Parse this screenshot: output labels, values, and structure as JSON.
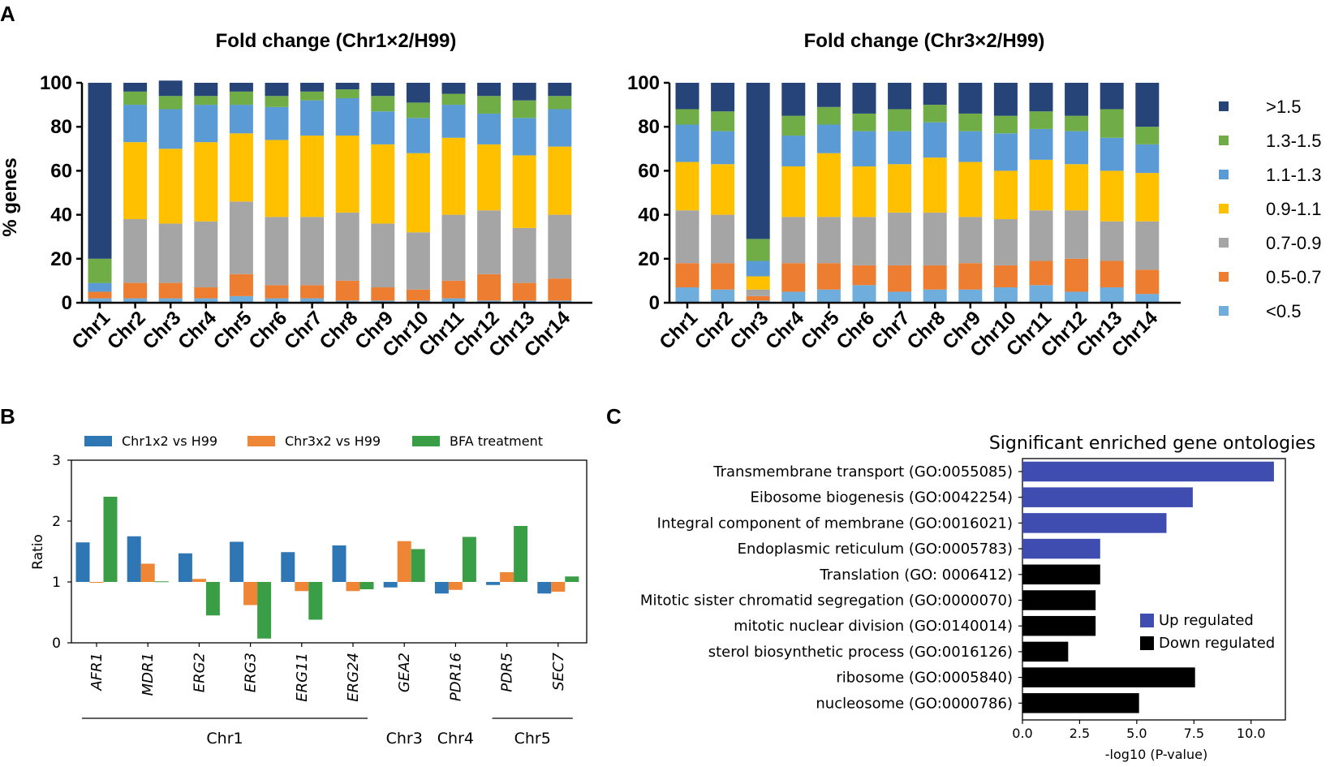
{
  "panel_labels": {
    "a": "A",
    "b": "B",
    "c": "C"
  },
  "colors": {
    "gt15": "#264478",
    "c13_15": "#70AD47",
    "c11_13": "#5B9BD5",
    "c09_11": "#FFC000",
    "c07_09": "#A5A5A5",
    "c05_07": "#ED7D31",
    "lt05": "#6FAEDC",
    "chr1x2": "#2F77B4",
    "chr3x2": "#EE8636",
    "bfa": "#3A9E46",
    "up": "#3F4DB0",
    "down": "#000000"
  },
  "chart_data": [
    {
      "id": "A1",
      "type": "bar",
      "stacked": true,
      "title": "Fold change (Chr1×2/H99)",
      "ylabel": "% genes",
      "ylim": [
        0,
        100
      ],
      "yticks": [
        "0",
        "20",
        "40",
        "60",
        "80",
        "100"
      ],
      "categories": [
        "Chr1",
        "Chr2",
        "Chr3",
        "Chr4",
        "Chr5",
        "Chr6",
        "Chr7",
        "Chr8",
        "Chr9",
        "Chr10",
        "Chr11",
        "Chr12",
        "Chr13",
        "Chr14"
      ],
      "series": [
        {
          "name": "<0.5",
          "color_key": "lt05",
          "values": [
            2,
            2,
            2,
            2,
            3,
            2,
            2,
            1,
            1,
            1,
            2,
            1,
            1,
            1
          ]
        },
        {
          "name": "0.5-0.7",
          "color_key": "c05_07",
          "values": [
            3,
            7,
            7,
            5,
            10,
            6,
            6,
            9,
            6,
            5,
            8,
            12,
            8,
            10
          ]
        },
        {
          "name": "0.7-0.9",
          "color_key": "c07_09",
          "values": [
            0,
            29,
            27,
            30,
            33,
            31,
            31,
            31,
            29,
            26,
            30,
            29,
            25,
            29
          ]
        },
        {
          "name": "0.9-1.1",
          "color_key": "c09_11",
          "values": [
            0,
            35,
            34,
            36,
            31,
            35,
            37,
            35,
            36,
            36,
            35,
            30,
            33,
            31
          ]
        },
        {
          "name": "1.1-1.3",
          "color_key": "c11_13",
          "values": [
            4,
            17,
            18,
            17,
            13,
            15,
            16,
            17,
            15,
            16,
            15,
            14,
            17,
            17
          ]
        },
        {
          "name": "1.3-1.5",
          "color_key": "c13_15",
          "values": [
            11,
            6,
            6,
            4,
            6,
            5,
            4,
            4,
            7,
            7,
            5,
            8,
            8,
            6
          ]
        },
        {
          "name": ">1.5",
          "color_key": "gt15",
          "values": [
            80,
            4,
            7,
            6,
            4,
            6,
            4,
            3,
            6,
            9,
            5,
            6,
            8,
            6
          ]
        }
      ]
    },
    {
      "id": "A2",
      "type": "bar",
      "stacked": true,
      "title": "Fold change (Chr3×2/H99)",
      "ylabel": "",
      "ylim": [
        0,
        100
      ],
      "yticks": [
        "0",
        "20",
        "40",
        "60",
        "80",
        "100"
      ],
      "categories": [
        "Chr1",
        "Chr2",
        "Chr3",
        "Chr4",
        "Chr5",
        "Chr6",
        "Chr7",
        "Chr8",
        "Chr9",
        "Chr10",
        "Chr11",
        "Chr12",
        "Chr13",
        "Chr14"
      ],
      "series": [
        {
          "name": "<0.5",
          "color_key": "lt05",
          "values": [
            7,
            6,
            1,
            5,
            6,
            8,
            5,
            6,
            6,
            7,
            8,
            5,
            7,
            4
          ]
        },
        {
          "name": "0.5-0.7",
          "color_key": "c05_07",
          "values": [
            11,
            12,
            2,
            13,
            12,
            9,
            12,
            11,
            12,
            10,
            11,
            15,
            12,
            11
          ]
        },
        {
          "name": "0.7-0.9",
          "color_key": "c07_09",
          "values": [
            24,
            22,
            3,
            21,
            21,
            22,
            24,
            24,
            21,
            21,
            23,
            22,
            18,
            22
          ]
        },
        {
          "name": "0.9-1.1",
          "color_key": "c09_11",
          "values": [
            22,
            23,
            6,
            23,
            29,
            23,
            22,
            25,
            25,
            22,
            23,
            21,
            23,
            22
          ]
        },
        {
          "name": "1.1-1.3",
          "color_key": "c11_13",
          "values": [
            17,
            15,
            7,
            14,
            13,
            16,
            15,
            16,
            14,
            17,
            14,
            15,
            15,
            13
          ]
        },
        {
          "name": "1.3-1.5",
          "color_key": "c13_15",
          "values": [
            7,
            9,
            10,
            9,
            8,
            8,
            10,
            8,
            8,
            8,
            8,
            7,
            13,
            8
          ]
        },
        {
          "name": ">1.5",
          "color_key": "gt15",
          "values": [
            12,
            13,
            71,
            15,
            11,
            14,
            12,
            10,
            14,
            15,
            13,
            15,
            12,
            20
          ]
        }
      ]
    },
    {
      "id": "B",
      "type": "bar",
      "baseline": 1,
      "ylabel": "Ratio",
      "ylim": [
        0,
        3
      ],
      "yticks": [
        "0",
        "1",
        "2",
        "3"
      ],
      "categories": [
        "AFR1",
        "MDR1",
        "ERG2",
        "ERG3",
        "ERG11",
        "ERG24",
        "GEA2",
        "PDR16",
        "PDR5",
        "SEC7"
      ],
      "groups": [
        {
          "label": "Chr1",
          "from": 0,
          "to": 5
        },
        {
          "label": "Chr3",
          "from": 6,
          "to": 6
        },
        {
          "label": "Chr4",
          "from": 7,
          "to": 7
        },
        {
          "label": "Chr5",
          "from": 8,
          "to": 9
        }
      ],
      "series": [
        {
          "name": "Chr1x2 vs H99",
          "color_key": "chr1x2",
          "values": [
            1.65,
            1.75,
            1.47,
            1.66,
            1.49,
            1.6,
            0.91,
            0.81,
            0.95,
            0.81
          ]
        },
        {
          "name": "Chr3x2 vs H99",
          "color_key": "chr3x2",
          "values": [
            0.99,
            1.3,
            1.05,
            0.62,
            0.85,
            0.85,
            1.67,
            0.87,
            1.16,
            0.84
          ]
        },
        {
          "name": "BFA treatment",
          "color_key": "bfa",
          "values": [
            2.4,
            1.01,
            0.45,
            0.07,
            0.38,
            0.88,
            1.54,
            1.74,
            1.92,
            1.09
          ]
        }
      ]
    },
    {
      "id": "C",
      "type": "bar",
      "orientation": "horizontal",
      "title": "Significant enriched gene ontologies",
      "xlabel": "-log10 (P-value)",
      "xlim": [
        0,
        11.5
      ],
      "xticks": [
        "0.0",
        "2.5",
        "5.0",
        "7.5",
        "10.0"
      ],
      "categories": [
        "Transmembrane transport (GO:0055085)",
        "Eibosome biogenesis (GO:0042254)",
        "Integral component of membrane (GO:0016021)",
        "Endoplasmic reticulum (GO:0005783)",
        "Translation (GO: 0006412)",
        "Mitotic sister chromatid segregation (GO:0000070)",
        "mitotic nuclear division (GO:0140014)",
        "sterol biosynthetic process (GO:0016126)",
        "ribosome (GO:0005840)",
        "nucleosome (GO:0000786)"
      ],
      "values": [
        11.0,
        7.45,
        6.3,
        3.4,
        3.4,
        3.2,
        3.2,
        2.0,
        7.55,
        5.1
      ],
      "regulation": [
        "up",
        "up",
        "up",
        "up",
        "down",
        "down",
        "down",
        "down",
        "down",
        "down"
      ],
      "legend": [
        {
          "name": "Up regulated",
          "color_key": "up"
        },
        {
          "name": "Down regulated",
          "color_key": "down"
        }
      ]
    }
  ]
}
